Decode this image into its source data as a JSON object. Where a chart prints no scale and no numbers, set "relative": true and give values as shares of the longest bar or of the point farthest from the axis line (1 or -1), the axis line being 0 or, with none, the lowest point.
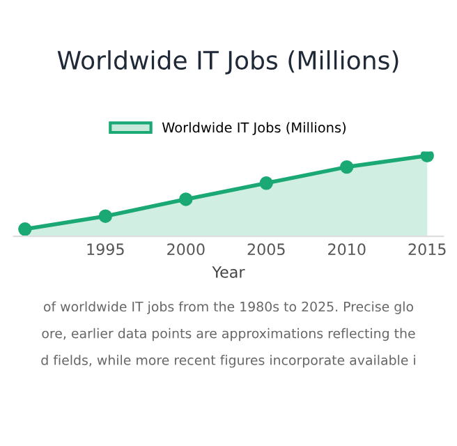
{
  "chart_data": {
    "type": "area",
    "title": "Worldwide IT Jobs (Millions)",
    "xlabel": "Year",
    "relative": true,
    "x": [
      1990,
      1995,
      2000,
      2005,
      2010,
      2015
    ],
    "series": [
      {
        "name": "Worldwide IT Jobs (Millions)",
        "color": "#1aa874",
        "values": [
          0.09,
          0.25,
          0.46,
          0.66,
          0.86,
          1.0
        ]
      }
    ],
    "xlim": [
      1989.3,
      2016
    ],
    "xticks": [
      1995,
      2000,
      2005,
      2010,
      2015
    ],
    "legend": "top",
    "marker": "circle",
    "line_style": "solid",
    "annotations": [
      "of worldwide IT jobs from the 1980s to 2025. Precise glo",
      "ore, earlier data points are approximations reflecting the",
      "d fields, while more recent figures incorporate available i"
    ]
  }
}
